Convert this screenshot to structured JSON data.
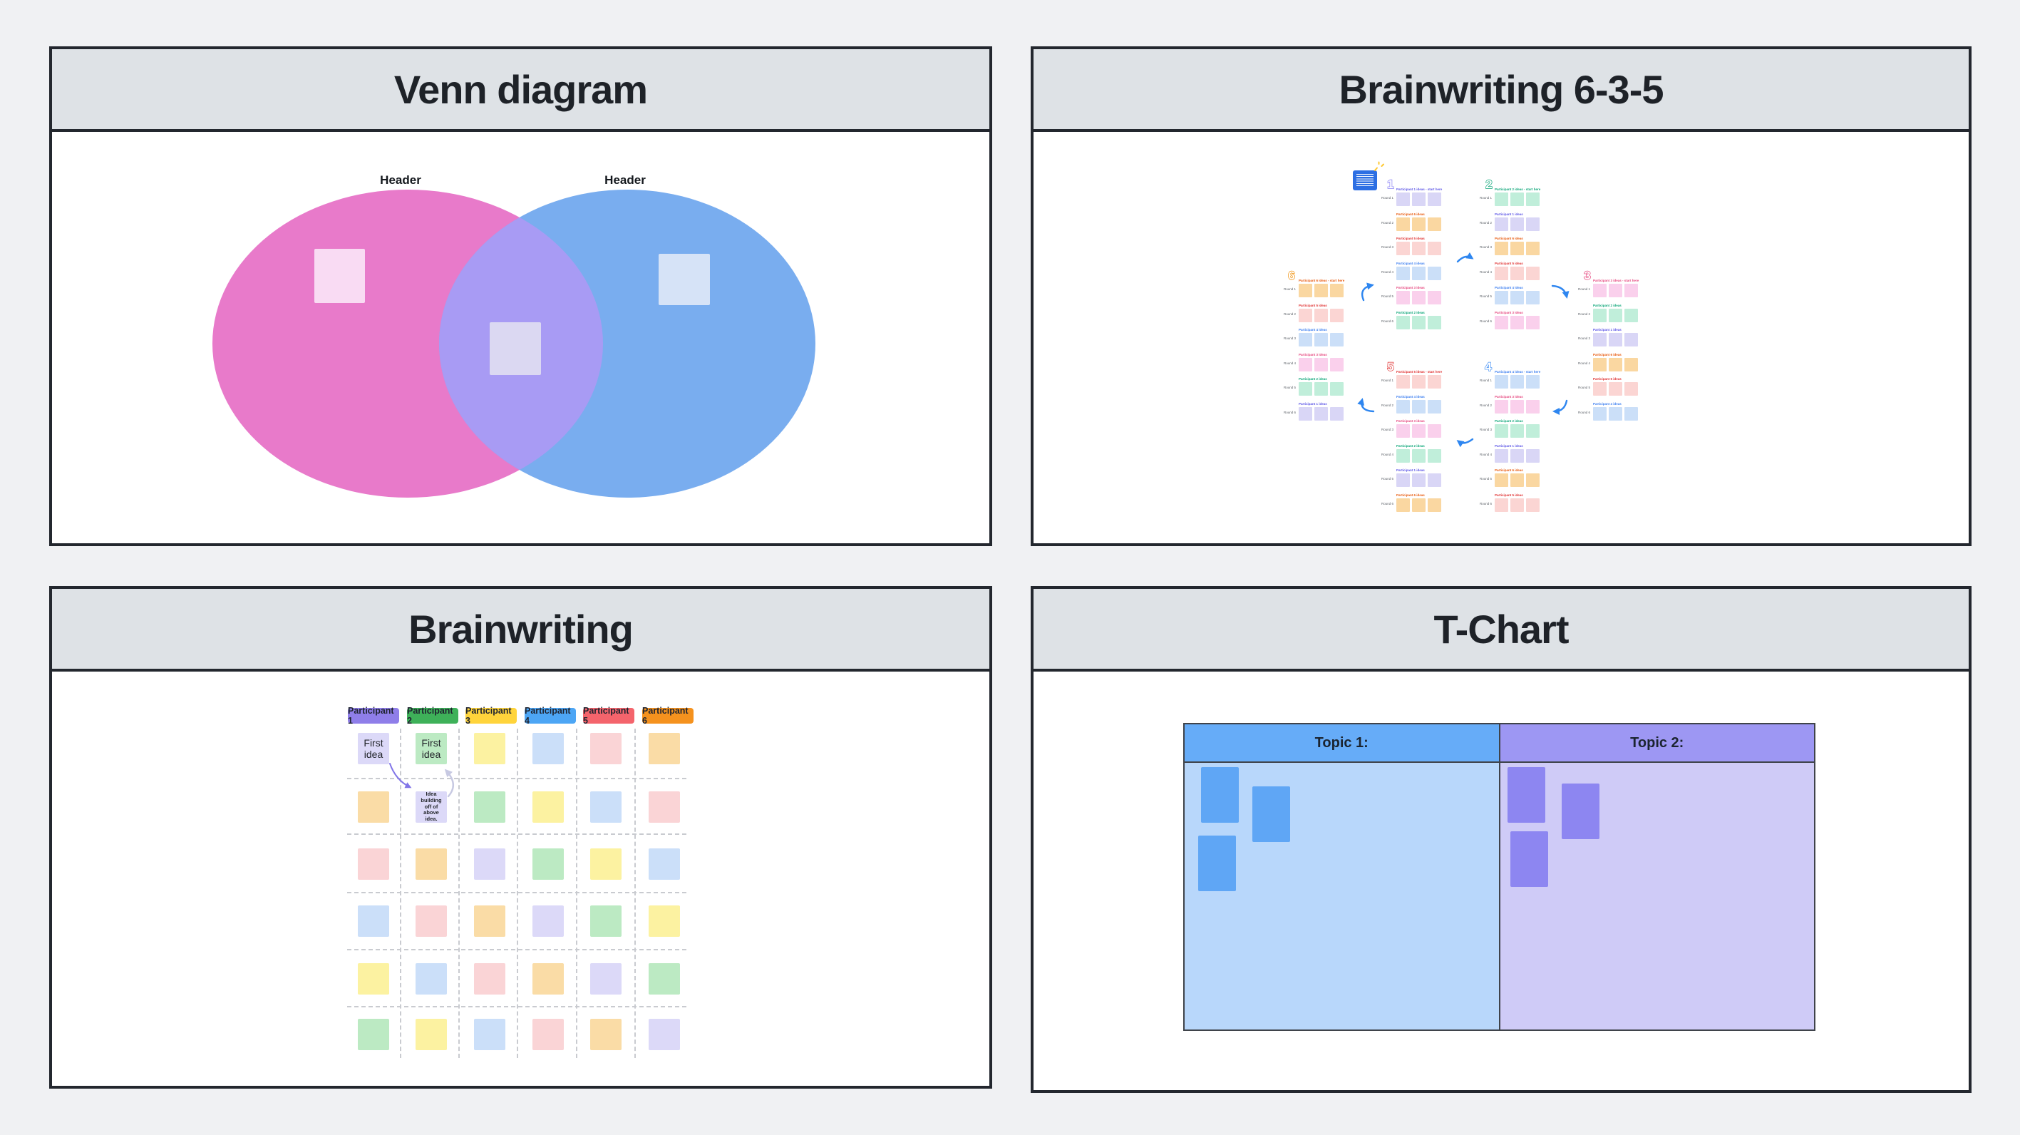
{
  "app": {
    "background": "#F0F1F3",
    "panel_border": "#23272E",
    "panel_header_bg": "#DEE2E6",
    "title_color": "#1E2228"
  },
  "venn": {
    "title": "Venn diagram",
    "circle_headers": [
      "Header",
      "Header"
    ],
    "left_color": "#E87ACA",
    "right_color": "#79ADEF",
    "overlap_color": "#A89BF4",
    "notes": [
      {
        "name": "left-circle-note",
        "color": "#F9DBF3"
      },
      {
        "name": "overlap-note",
        "color": "#DBD8F2"
      },
      {
        "name": "right-circle-note",
        "color": "#D6E3F7"
      }
    ]
  },
  "b635": {
    "title": "Brainwriting 6-3-5",
    "instruction_note_color": "#2D6FE3",
    "sparkle_color": "#FFC933",
    "arrow_color": "#2E86F0",
    "participants": {
      "p1": {
        "label_color": "#5C55E6",
        "sticky": "#D9D6F6"
      },
      "p2": {
        "label_color": "#0CA678",
        "sticky": "#C0EEDA"
      },
      "p3": {
        "label_color": "#E64980",
        "sticky": "#FAD0EC"
      },
      "p4": {
        "label_color": "#3D7FF0",
        "sticky": "#CBDFF8"
      },
      "p5": {
        "label_color": "#E03131",
        "sticky": "#FBD5D3"
      },
      "p6": {
        "label_color": "#E8590C",
        "sticky": "#FAD7A1"
      }
    },
    "sections": [
      {
        "number": "1",
        "number_color": "#8A82F5",
        "groups": [
          {
            "round": "Round 1",
            "participant": "p1",
            "label": "Participant 1 ideas - start here"
          },
          {
            "round": "Round 2",
            "participant": "p6",
            "label": "Participant 6 ideas"
          },
          {
            "round": "Round 3",
            "participant": "p5",
            "label": "Participant 5 ideas"
          },
          {
            "round": "Round 4",
            "participant": "p4",
            "label": "Participant 4 ideas"
          },
          {
            "round": "Round 5",
            "participant": "p3",
            "label": "Participant 3 ideas"
          },
          {
            "round": "Round 6",
            "participant": "p2",
            "label": "Participant 2 ideas"
          }
        ]
      },
      {
        "number": "2",
        "number_color": "#0CA678",
        "groups": [
          {
            "round": "Round 1",
            "participant": "p2",
            "label": "Participant 2 ideas - start here"
          },
          {
            "round": "Round 2",
            "participant": "p1",
            "label": "Participant 1 ideas"
          },
          {
            "round": "Round 3",
            "participant": "p6",
            "label": "Participant 6 ideas"
          },
          {
            "round": "Round 4",
            "participant": "p5",
            "label": "Participant 5 ideas"
          },
          {
            "round": "Round 5",
            "participant": "p4",
            "label": "Participant 4 ideas"
          },
          {
            "round": "Round 6",
            "participant": "p3",
            "label": "Participant 3 ideas"
          }
        ]
      },
      {
        "number": "3",
        "number_color": "#E64980",
        "groups": [
          {
            "round": "Round 1",
            "participant": "p3",
            "label": "Participant 3 ideas - start here"
          },
          {
            "round": "Round 2",
            "participant": "p2",
            "label": "Participant 2 ideas"
          },
          {
            "round": "Round 3",
            "participant": "p1",
            "label": "Participant 1 ideas"
          },
          {
            "round": "Round 4",
            "participant": "p6",
            "label": "Participant 6 ideas"
          },
          {
            "round": "Round 5",
            "participant": "p5",
            "label": "Participant 5 ideas"
          },
          {
            "round": "Round 6",
            "participant": "p4",
            "label": "Participant 4 ideas"
          }
        ]
      },
      {
        "number": "4",
        "number_color": "#4D96F5",
        "groups": [
          {
            "round": "Round 1",
            "participant": "p4",
            "label": "Participant 4 ideas - start here"
          },
          {
            "round": "Round 2",
            "participant": "p3",
            "label": "Participant 3 ideas"
          },
          {
            "round": "Round 3",
            "participant": "p2",
            "label": "Participant 2 ideas"
          },
          {
            "round": "Round 4",
            "participant": "p1",
            "label": "Participant 1 ideas"
          },
          {
            "round": "Round 5",
            "participant": "p6",
            "label": "Participant 6 ideas"
          },
          {
            "round": "Round 6",
            "participant": "p5",
            "label": "Participant 5 ideas"
          }
        ]
      },
      {
        "number": "5",
        "number_color": "#E03131",
        "groups": [
          {
            "round": "Round 1",
            "participant": "p5",
            "label": "Participant 5 ideas - start here"
          },
          {
            "round": "Round 2",
            "participant": "p4",
            "label": "Participant 4 ideas"
          },
          {
            "round": "Round 3",
            "participant": "p3",
            "label": "Participant 3 ideas"
          },
          {
            "round": "Round 4",
            "participant": "p2",
            "label": "Participant 2 ideas"
          },
          {
            "round": "Round 5",
            "participant": "p1",
            "label": "Participant 1 ideas"
          },
          {
            "round": "Round 6",
            "participant": "p6",
            "label": "Participant 6 ideas"
          }
        ]
      },
      {
        "number": "6",
        "number_color": "#F08C00",
        "groups": [
          {
            "round": "Round 1",
            "participant": "p6",
            "label": "Participant 6 ideas - start here"
          },
          {
            "round": "Round 2",
            "participant": "p5",
            "label": "Participant 5 ideas"
          },
          {
            "round": "Round 3",
            "participant": "p4",
            "label": "Participant 4 ideas"
          },
          {
            "round": "Round 4",
            "participant": "p3",
            "label": "Participant 3 ideas"
          },
          {
            "round": "Round 5",
            "participant": "p2",
            "label": "Participant 2 ideas"
          },
          {
            "round": "Round 6",
            "participant": "p1",
            "label": "Participant 1 ideas"
          }
        ]
      }
    ]
  },
  "brainwriting": {
    "title": "Brainwriting",
    "participants": [
      {
        "label": "Participant 1",
        "color": "#8F7EE9"
      },
      {
        "label": "Participant 2",
        "color": "#3EB159"
      },
      {
        "label": "Participant 3",
        "color": "#FFD43B"
      },
      {
        "label": "Participant 4",
        "color": "#4DA6F5"
      },
      {
        "label": "Participant 5",
        "color": "#F4646C"
      },
      {
        "label": "Participant 6",
        "color": "#F5921E"
      }
    ],
    "palette": {
      "lav": "#DCD9F8",
      "org": "#FADCA6",
      "pnk": "#FAD4D6",
      "blu": "#CBDFF9",
      "yel": "#FCF2A1",
      "grn": "#BCEAC3"
    },
    "grid_rows": [
      [
        "lav",
        "grn",
        "yel",
        "blu",
        "pnk",
        "org"
      ],
      [
        "org",
        "lav",
        "grn",
        "yel",
        "blu",
        "pnk"
      ],
      [
        "pnk",
        "org",
        "lav",
        "grn",
        "yel",
        "blu"
      ],
      [
        "blu",
        "pnk",
        "org",
        "lav",
        "grn",
        "yel"
      ],
      [
        "yel",
        "blu",
        "pnk",
        "org",
        "lav",
        "grn"
      ],
      [
        "grn",
        "yel",
        "blu",
        "pnk",
        "org",
        "lav"
      ]
    ],
    "text_notes": [
      {
        "row": 0,
        "col": 0,
        "text": "First idea",
        "size": "big"
      },
      {
        "row": 0,
        "col": 1,
        "text": "First idea",
        "size": "big"
      },
      {
        "row": 1,
        "col": 1,
        "text": "Idea building off of above idea.",
        "size": "small"
      }
    ],
    "arrow_colors": {
      "purple": "#8276E8",
      "gray": "#C7C9E2"
    }
  },
  "tchart": {
    "title": "T-Chart",
    "border_color": "#3F434A",
    "columns": [
      {
        "label": "Topic 1:",
        "header_color": "#66ACF8",
        "body_color": "#B8D7FB",
        "note_color": "#5FA6F5"
      },
      {
        "label": "Topic 2:",
        "header_color": "#9D97F3",
        "body_color": "#CFCBF7",
        "note_color": "#8D86F1"
      }
    ]
  }
}
